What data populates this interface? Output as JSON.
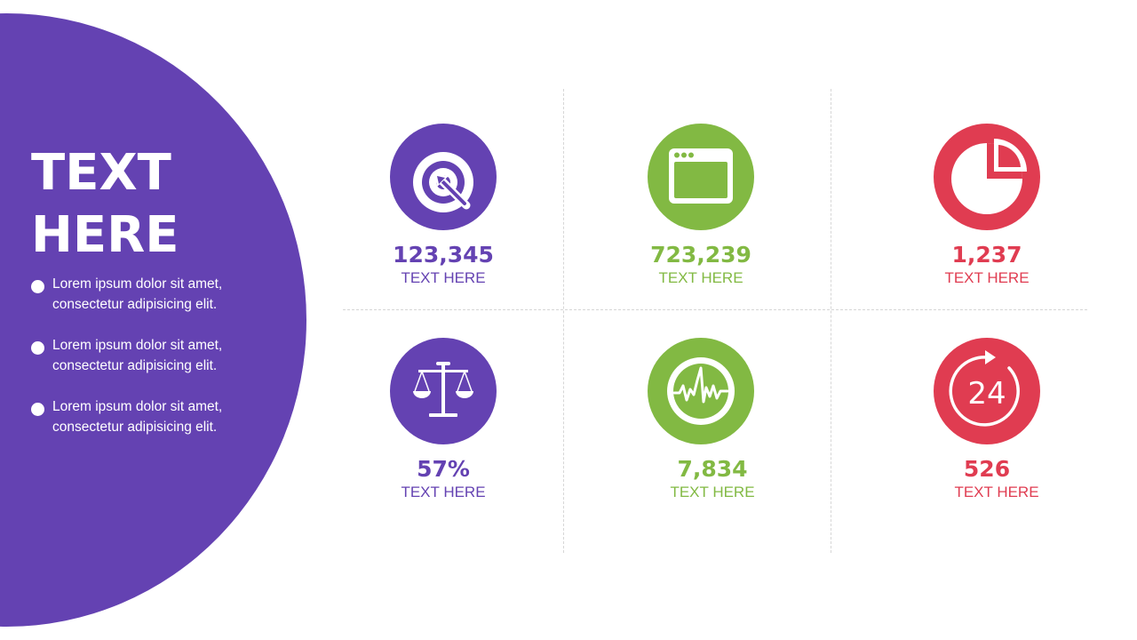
{
  "colors": {
    "purple": "#6442b2",
    "green": "#82b943",
    "red": "#e03c51"
  },
  "left": {
    "title_line1": "TEXT",
    "title_line2": "HERE",
    "bullets": [
      {
        "line1": "Lorem ipsum dolor sit amet,",
        "line2": "consectetur adipisicing elit."
      },
      {
        "line1": "Lorem ipsum dolor sit amet,",
        "line2": "consectetur adipisicing elit."
      },
      {
        "line1": "Lorem ipsum dolor sit amet,",
        "line2": "consectetur adipisicing elit."
      }
    ]
  },
  "stats": [
    {
      "icon": "target-icon",
      "value": "123,345",
      "label": "TEXT HERE",
      "color": "purple"
    },
    {
      "icon": "browser-window-icon",
      "value": "723,239",
      "label": "TEXT HERE",
      "color": "green"
    },
    {
      "icon": "pie-chart-icon",
      "value": "1,237",
      "label": "TEXT HERE",
      "color": "red"
    },
    {
      "icon": "scales-icon",
      "value": "57%",
      "label": "TEXT HERE",
      "color": "purple"
    },
    {
      "icon": "waveform-icon",
      "value": "7,834",
      "label": "TEXT HERE",
      "color": "green"
    },
    {
      "icon": "24-hour-icon",
      "value": "526",
      "label": "TEXT HERE",
      "color": "red",
      "icon_text": "24"
    }
  ]
}
